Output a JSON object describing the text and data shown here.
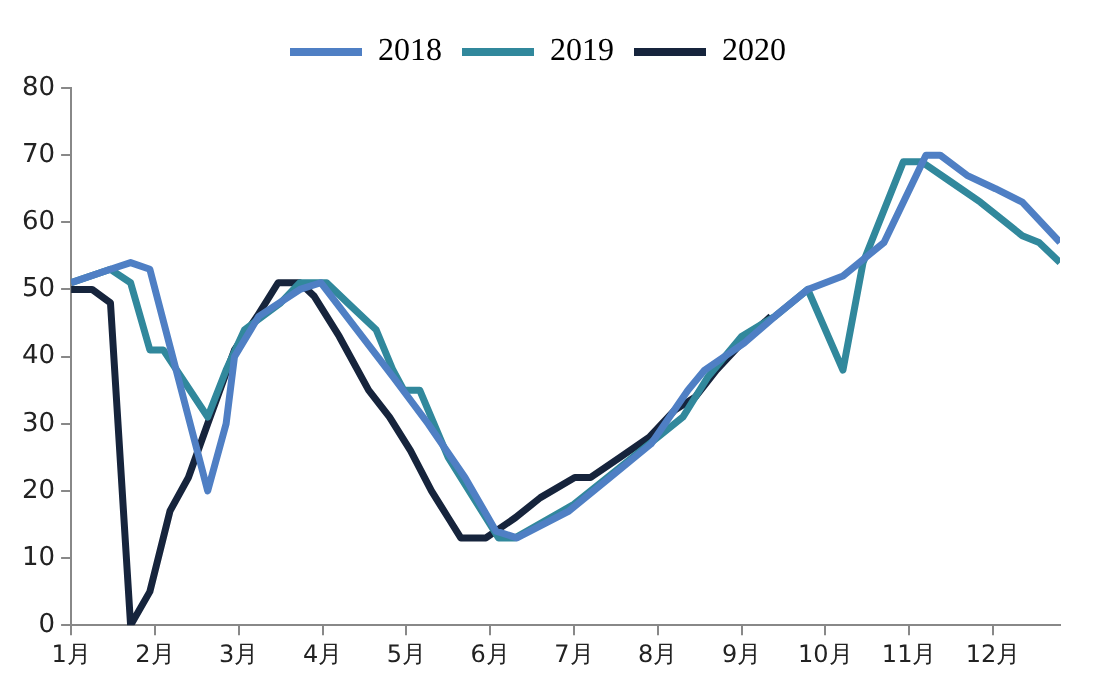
{
  "chart_data": {
    "type": "line",
    "legend": "top",
    "grid": false,
    "marker": "none",
    "line_style": "solid",
    "xlim": [
      1,
      12.8
    ],
    "ylim": [
      0,
      80
    ],
    "yticks": [
      0,
      10,
      20,
      30,
      40,
      50,
      60,
      70,
      80
    ],
    "xticks": [
      {
        "value": 1,
        "label": "1月"
      },
      {
        "value": 2,
        "label": "2月"
      },
      {
        "value": 3,
        "label": "3月"
      },
      {
        "value": 4,
        "label": "4月"
      },
      {
        "value": 5,
        "label": "5月"
      },
      {
        "value": 6,
        "label": "6月"
      },
      {
        "value": 7,
        "label": "7月"
      },
      {
        "value": 8,
        "label": "8月"
      },
      {
        "value": 9,
        "label": "9月"
      },
      {
        "value": 10,
        "label": "10月"
      },
      {
        "value": 11,
        "label": "11月"
      },
      {
        "value": 12,
        "label": "12月"
      }
    ],
    "series": [
      {
        "name": "2018",
        "color": "#4f7fc4",
        "x": [
          1.0,
          1.47,
          1.71,
          1.94,
          2.63,
          2.85,
          2.95,
          3.24,
          3.73,
          3.98,
          4.35,
          4.84,
          5.26,
          5.7,
          6.07,
          6.32,
          6.94,
          7.43,
          7.92,
          8.36,
          8.56,
          9.03,
          9.4,
          9.79,
          10.21,
          10.7,
          11.2,
          11.37,
          11.69,
          12.03,
          12.35,
          12.8
        ],
        "values": [
          51,
          53,
          54,
          53,
          20,
          30,
          40,
          46,
          50,
          51,
          45,
          37,
          30,
          22,
          14,
          13,
          17,
          22,
          27,
          35,
          38,
          42,
          46,
          50,
          52,
          57,
          70,
          70,
          67,
          65,
          63,
          57
        ]
      },
      {
        "name": "2019",
        "color": "#31889c",
        "x": [
          1.0,
          1.47,
          1.71,
          1.94,
          2.1,
          2.63,
          2.85,
          3.07,
          3.5,
          3.73,
          4.05,
          4.3,
          4.64,
          4.84,
          4.97,
          5.16,
          5.5,
          6.0,
          6.1,
          6.3,
          7.0,
          7.5,
          8.0,
          8.3,
          8.6,
          9.0,
          9.4,
          9.79,
          10.21,
          10.45,
          10.93,
          11.15,
          11.5,
          11.85,
          12.15,
          12.35,
          12.55,
          12.8
        ],
        "values": [
          51,
          53,
          51,
          41,
          41,
          31,
          38,
          44,
          48,
          51,
          51,
          48,
          44,
          38,
          35,
          35,
          25,
          15,
          13,
          13,
          18,
          23,
          28,
          31,
          37,
          43,
          46,
          50,
          38,
          54,
          69,
          69,
          66,
          63,
          60,
          58,
          57,
          54
        ]
      },
      {
        "name": "2020",
        "color": "#16243c",
        "x": [
          1.0,
          1.25,
          1.47,
          1.71,
          1.94,
          2.18,
          2.4,
          2.63,
          2.95,
          3.22,
          3.47,
          3.73,
          3.9,
          4.2,
          4.55,
          4.8,
          5.05,
          5.3,
          5.5,
          5.65,
          5.95,
          6.3,
          6.6,
          7.01,
          7.2,
          7.55,
          7.9,
          8.2,
          8.45,
          8.7,
          9.0,
          9.35
        ],
        "values": [
          50,
          50,
          48,
          0,
          5,
          17,
          22,
          30,
          41,
          46,
          51,
          51,
          49,
          43,
          35,
          31,
          26,
          20,
          16,
          13,
          13,
          16,
          19,
          22,
          22,
          25,
          28,
          32,
          34,
          38,
          42,
          46
        ]
      }
    ]
  }
}
